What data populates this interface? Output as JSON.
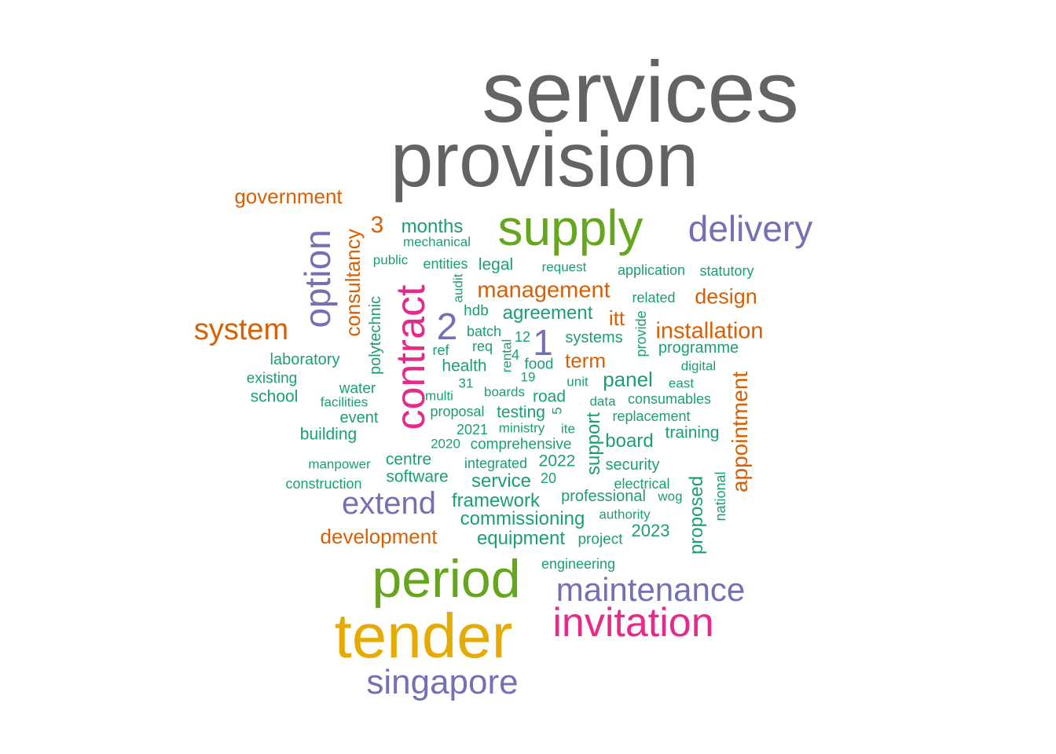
{
  "palette": {
    "gray": "#636363",
    "green": "#66a61e",
    "purple": "#7570b3",
    "orange": "#d95f02",
    "pink": "#e7298a",
    "gold": "#e6ab02",
    "teal": "#1b9e77"
  },
  "words": [
    {
      "text": "services",
      "color": "gray"
    },
    {
      "text": "provision",
      "color": "gray"
    },
    {
      "text": "government",
      "color": "orange"
    },
    {
      "text": "supply",
      "color": "green"
    },
    {
      "text": "delivery",
      "color": "purple"
    },
    {
      "text": "3",
      "color": "orange"
    },
    {
      "text": "months",
      "color": "teal"
    },
    {
      "text": "mechanical",
      "color": "teal"
    },
    {
      "text": "public",
      "color": "teal"
    },
    {
      "text": "entities",
      "color": "teal"
    },
    {
      "text": "legal",
      "color": "teal"
    },
    {
      "text": "request",
      "color": "teal"
    },
    {
      "text": "application",
      "color": "teal"
    },
    {
      "text": "statutory",
      "color": "teal"
    },
    {
      "text": "management",
      "color": "orange"
    },
    {
      "text": "related",
      "color": "teal"
    },
    {
      "text": "design",
      "color": "orange"
    },
    {
      "text": "system",
      "color": "orange"
    },
    {
      "text": "option",
      "color": "purple"
    },
    {
      "text": "consultancy",
      "color": "orange"
    },
    {
      "text": "polytechnic",
      "color": "teal"
    },
    {
      "text": "contract",
      "color": "pink"
    },
    {
      "text": "audit",
      "color": "teal"
    },
    {
      "text": "2",
      "color": "purple"
    },
    {
      "text": "hdb",
      "color": "teal"
    },
    {
      "text": "agreement",
      "color": "teal"
    },
    {
      "text": "itt",
      "color": "orange"
    },
    {
      "text": "installation",
      "color": "orange"
    },
    {
      "text": "batch",
      "color": "teal"
    },
    {
      "text": "12",
      "color": "teal"
    },
    {
      "text": "1",
      "color": "purple"
    },
    {
      "text": "systems",
      "color": "teal"
    },
    {
      "text": "provide",
      "color": "teal"
    },
    {
      "text": "programme",
      "color": "teal"
    },
    {
      "text": "laboratory",
      "color": "teal"
    },
    {
      "text": "ref",
      "color": "teal"
    },
    {
      "text": "req",
      "color": "teal"
    },
    {
      "text": "rental",
      "color": "teal"
    },
    {
      "text": "4",
      "color": "teal"
    },
    {
      "text": "health",
      "color": "teal"
    },
    {
      "text": "food",
      "color": "teal"
    },
    {
      "text": "term",
      "color": "orange"
    },
    {
      "text": "digital",
      "color": "teal"
    },
    {
      "text": "existing",
      "color": "teal"
    },
    {
      "text": "water",
      "color": "teal"
    },
    {
      "text": "31",
      "color": "teal"
    },
    {
      "text": "19",
      "color": "teal"
    },
    {
      "text": "unit",
      "color": "teal"
    },
    {
      "text": "panel",
      "color": "teal"
    },
    {
      "text": "east",
      "color": "teal"
    },
    {
      "text": "school",
      "color": "teal"
    },
    {
      "text": "multi",
      "color": "teal"
    },
    {
      "text": "boards",
      "color": "teal"
    },
    {
      "text": "road",
      "color": "teal"
    },
    {
      "text": "facilities",
      "color": "teal"
    },
    {
      "text": "data",
      "color": "teal"
    },
    {
      "text": "consumables",
      "color": "teal"
    },
    {
      "text": "appointment",
      "color": "orange"
    },
    {
      "text": "event",
      "color": "teal"
    },
    {
      "text": "proposal",
      "color": "teal"
    },
    {
      "text": "testing",
      "color": "teal"
    },
    {
      "text": "5",
      "color": "teal"
    },
    {
      "text": "replacement",
      "color": "teal"
    },
    {
      "text": "2021",
      "color": "teal"
    },
    {
      "text": "ministry",
      "color": "teal"
    },
    {
      "text": "ite",
      "color": "teal"
    },
    {
      "text": "training",
      "color": "teal"
    },
    {
      "text": "building",
      "color": "teal"
    },
    {
      "text": "support",
      "color": "teal"
    },
    {
      "text": "board",
      "color": "teal"
    },
    {
      "text": "2020",
      "color": "teal"
    },
    {
      "text": "comprehensive",
      "color": "teal"
    },
    {
      "text": "manpower",
      "color": "teal"
    },
    {
      "text": "centre",
      "color": "teal"
    },
    {
      "text": "integrated",
      "color": "teal"
    },
    {
      "text": "2022",
      "color": "teal"
    },
    {
      "text": "security",
      "color": "teal"
    },
    {
      "text": "software",
      "color": "teal"
    },
    {
      "text": "construction",
      "color": "teal"
    },
    {
      "text": "service",
      "color": "teal"
    },
    {
      "text": "20",
      "color": "teal"
    },
    {
      "text": "electrical",
      "color": "teal"
    },
    {
      "text": "proposed",
      "color": "teal"
    },
    {
      "text": "national",
      "color": "teal"
    },
    {
      "text": "extend",
      "color": "purple"
    },
    {
      "text": "framework",
      "color": "teal"
    },
    {
      "text": "professional",
      "color": "teal"
    },
    {
      "text": "wog",
      "color": "teal"
    },
    {
      "text": "authority",
      "color": "teal"
    },
    {
      "text": "commissioning",
      "color": "teal"
    },
    {
      "text": "2023",
      "color": "teal"
    },
    {
      "text": "development",
      "color": "orange"
    },
    {
      "text": "equipment",
      "color": "teal"
    },
    {
      "text": "project",
      "color": "teal"
    },
    {
      "text": "engineering",
      "color": "teal"
    },
    {
      "text": "period",
      "color": "green"
    },
    {
      "text": "maintenance",
      "color": "purple"
    },
    {
      "text": "invitation",
      "color": "pink"
    },
    {
      "text": "tender",
      "color": "gold"
    },
    {
      "text": "singapore",
      "color": "purple"
    }
  ]
}
